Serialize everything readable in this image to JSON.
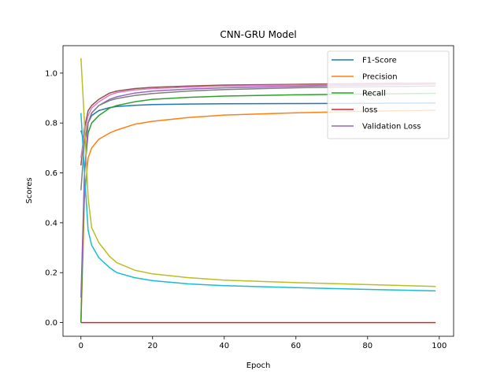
{
  "chart_data": {
    "type": "line",
    "title": "CNN-GRU Model",
    "xlabel": "Epoch",
    "ylabel": "Scores",
    "xlim": [
      -5,
      104
    ],
    "ylim": [
      -0.055,
      1.11
    ],
    "xticks": [
      0,
      20,
      40,
      60,
      80,
      100
    ],
    "yticks": [
      0.0,
      0.2,
      0.4,
      0.6,
      0.8,
      1.0
    ],
    "ytick_labels": [
      "0.0",
      "0.2",
      "0.4",
      "0.6",
      "0.8",
      "1.0"
    ],
    "grid": false,
    "legend_position": "top-right",
    "legend": [
      "F1-Score",
      "Precision",
      "Recall",
      "loss",
      "Validation Loss"
    ],
    "series": [
      {
        "name": "F1-Score",
        "color": "#1f77b4",
        "x": [
          0,
          1,
          2,
          3,
          5,
          8,
          10,
          15,
          20,
          30,
          40,
          60,
          80,
          99
        ],
        "y": [
          0.77,
          0.72,
          0.8,
          0.83,
          0.85,
          0.862,
          0.866,
          0.871,
          0.874,
          0.876,
          0.877,
          0.878,
          0.879,
          0.88
        ]
      },
      {
        "name": "Precision",
        "color": "#ff7f0e",
        "x": [
          0,
          1,
          2,
          3,
          5,
          8,
          10,
          15,
          20,
          30,
          40,
          60,
          80,
          99
        ],
        "y": [
          0.0,
          0.5,
          0.66,
          0.7,
          0.735,
          0.76,
          0.772,
          0.795,
          0.807,
          0.822,
          0.832,
          0.841,
          0.847,
          0.851
        ]
      },
      {
        "name": "Recall",
        "color": "#2ca02c",
        "x": [
          0,
          1,
          2,
          3,
          5,
          8,
          10,
          15,
          20,
          30,
          40,
          60,
          80,
          99
        ],
        "y": [
          0.0,
          0.6,
          0.76,
          0.8,
          0.83,
          0.86,
          0.87,
          0.885,
          0.895,
          0.903,
          0.908,
          0.913,
          0.916,
          0.919
        ]
      },
      {
        "name": "loss",
        "color": "#d62728",
        "x": [
          0,
          99
        ],
        "y": [
          0.0,
          0.0
        ]
      },
      {
        "name": "Validation Loss",
        "color": "#9467bd",
        "x": [
          0,
          1,
          2,
          3,
          5,
          8,
          10,
          15,
          20,
          30,
          40,
          60,
          80,
          99
        ],
        "y": [
          0.1,
          0.6,
          0.8,
          0.84,
          0.87,
          0.895,
          0.905,
          0.92,
          0.928,
          0.936,
          0.941,
          0.947,
          0.952,
          0.956
        ]
      },
      {
        "color": "#8c564b",
        "x": [
          0,
          1,
          2,
          3,
          5,
          8,
          10,
          15,
          20,
          30,
          40,
          60,
          80,
          99
        ],
        "y": [
          0.63,
          0.78,
          0.85,
          0.87,
          0.895,
          0.92,
          0.928,
          0.938,
          0.943,
          0.948,
          0.952,
          0.955,
          0.958,
          0.96
        ]
      },
      {
        "color": "#e377c2",
        "x": [
          0,
          1,
          2,
          3,
          5,
          8,
          10,
          15,
          20,
          30,
          40,
          60,
          80,
          99
        ],
        "y": [
          0.66,
          0.76,
          0.83,
          0.86,
          0.885,
          0.912,
          0.922,
          0.933,
          0.938,
          0.944,
          0.948,
          0.952,
          0.955,
          0.958
        ]
      },
      {
        "color": "#7f7f7f",
        "x": [
          0,
          1,
          2,
          3,
          5,
          8,
          10,
          15,
          20,
          30,
          40,
          60,
          80,
          99
        ],
        "y": [
          0.53,
          0.73,
          0.8,
          0.84,
          0.87,
          0.89,
          0.898,
          0.91,
          0.918,
          0.928,
          0.934,
          0.941,
          0.945,
          0.948
        ]
      },
      {
        "color": "#bcbd22",
        "x": [
          0,
          1,
          2,
          3,
          5,
          8,
          10,
          15,
          20,
          30,
          40,
          60,
          80,
          99
        ],
        "y": [
          1.06,
          0.8,
          0.5,
          0.38,
          0.32,
          0.265,
          0.24,
          0.21,
          0.195,
          0.18,
          0.17,
          0.16,
          0.152,
          0.145
        ]
      },
      {
        "color": "#17becf",
        "x": [
          0,
          1,
          2,
          3,
          5,
          8,
          10,
          15,
          20,
          30,
          40,
          60,
          80,
          99
        ],
        "y": [
          0.84,
          0.6,
          0.37,
          0.31,
          0.26,
          0.22,
          0.2,
          0.18,
          0.168,
          0.155,
          0.148,
          0.14,
          0.133,
          0.127
        ]
      }
    ]
  }
}
